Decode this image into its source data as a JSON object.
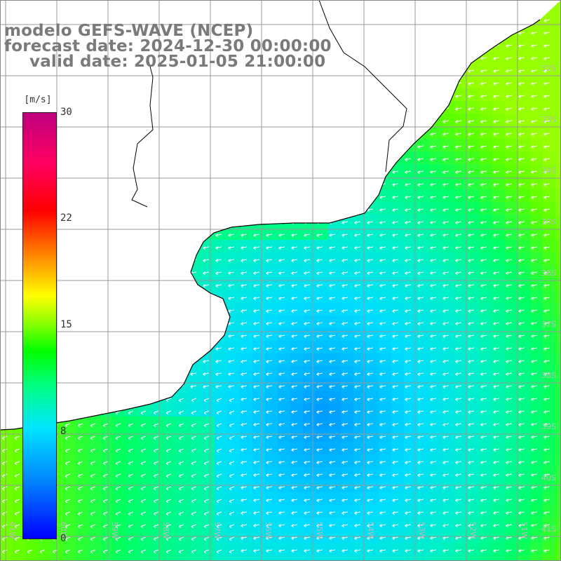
{
  "title": {
    "line1": "modelo GEFS-WAVE (NCEP)",
    "line2": "forecast date: 2024-12-30 00:00:00",
    "line3": "valid date: 2025-01-05 21:00:00"
  },
  "colorbar": {
    "unit": "[m/s]",
    "ticks": [
      "30",
      "22",
      "15",
      "8",
      "0"
    ],
    "range": [
      0,
      30
    ],
    "colors": [
      "#0000ff",
      "#0080ff",
      "#00e5ff",
      "#00ff80",
      "#00ff00",
      "#7fff00",
      "#ffff00",
      "#ff8000",
      "#ff0000",
      "#c00080"
    ]
  },
  "map": {
    "lat_labels": [
      "32S",
      "33S",
      "34S",
      "35S",
      "36S",
      "37S",
      "38S",
      "39S",
      "40S",
      "41S"
    ],
    "lon_labels": [
      "61W",
      "60W",
      "59W",
      "58W",
      "57W",
      "56W",
      "55W",
      "54W",
      "53W",
      "52W",
      "51W"
    ],
    "land_color": "#ffffff",
    "grid_color": "#9a9a9a",
    "coast_color": "#000000",
    "arrow_color": "#ffffff"
  }
}
